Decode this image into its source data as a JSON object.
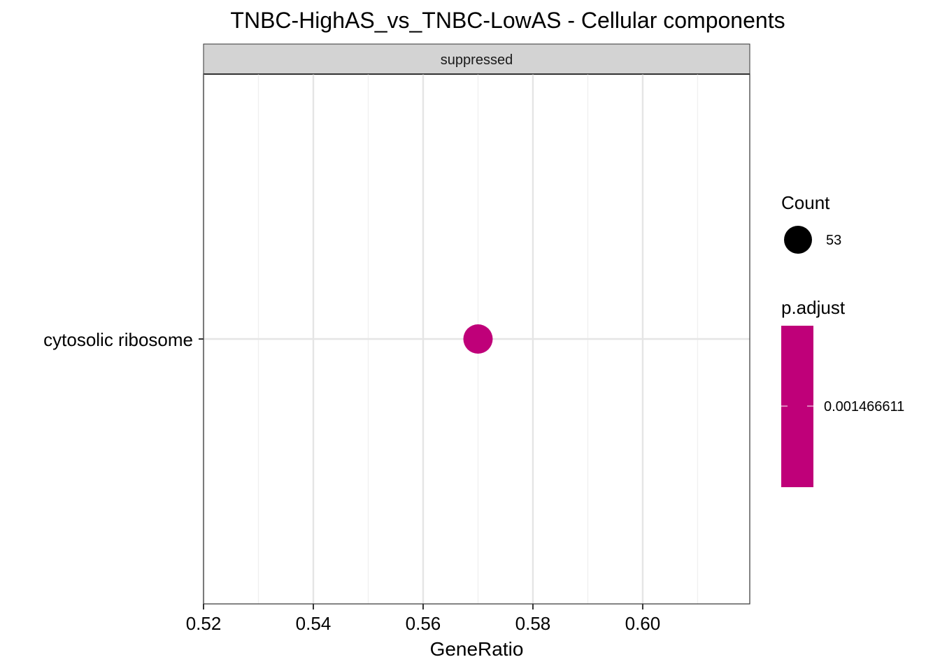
{
  "chart_data": {
    "type": "scatter",
    "title": "TNBC-HighAS_vs_TNBC-LowAS - Cellular components",
    "facet": "suppressed",
    "xlabel": "GeneRatio",
    "ylabel": "",
    "xlim": [
      0.52,
      0.6195
    ],
    "x_ticks": [
      0.52,
      0.54,
      0.56,
      0.58,
      0.6
    ],
    "x_tick_labels": [
      "0.52",
      "0.54",
      "0.56",
      "0.58",
      "0.60"
    ],
    "categories": [
      "cytosolic ribosome"
    ],
    "points": [
      {
        "category": "cytosolic ribosome",
        "x": 0.57,
        "count": 53,
        "p_adjust": 0.001466611,
        "color": "#bf0079"
      }
    ],
    "legend": {
      "position": "right",
      "size_title": "Count",
      "size_entries": [
        {
          "label": "53",
          "value": 53
        }
      ],
      "color_title": "p.adjust",
      "color_labels": [
        "0.001466611"
      ],
      "color": "#bf0079"
    },
    "grid": true
  }
}
